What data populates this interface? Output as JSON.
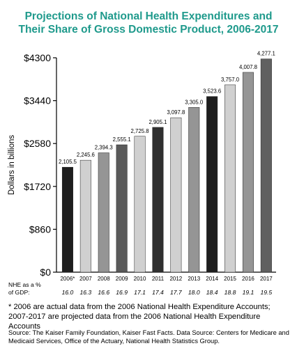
{
  "chart_data": {
    "type": "bar",
    "title": "Projections of National Health Expenditures and Their Share of Gross Domestic Product, 2006-2017",
    "title_lines": [
      "Projections of National Health Expenditures and",
      "Their Share of Gross Domestic Product, 2006-2017"
    ],
    "ylabel": "Dollars in billions",
    "xlabel": "",
    "categories": [
      "2006*",
      "2007",
      "2008",
      "2009",
      "2010",
      "2011",
      "2012",
      "2013",
      "2014",
      "2015",
      "2016",
      "2017"
    ],
    "values": [
      2105.5,
      2245.6,
      2394.3,
      2555.1,
      2725.8,
      2905.1,
      3097.8,
      3305.0,
      3523.6,
      3757.0,
      4007.8,
      4277.1
    ],
    "value_labels": [
      "2,105.5",
      "2,245.6",
      "2,394.3",
      "2,555.1",
      "2,725.8",
      "2,905.1",
      "3,097.8",
      "3,305.0",
      "3,523.6",
      "3,757.0",
      "4,007.8",
      "4,277.1"
    ],
    "bar_colors": [
      "#1e1e1e",
      "#d0d0d0",
      "#959595",
      "#5a5a5a",
      "#d0d0d0",
      "#303030",
      "#d0d0d0",
      "#959595",
      "#1e1e1e",
      "#d0d0d0",
      "#959595",
      "#606060"
    ],
    "ylim": [
      0,
      4300
    ],
    "yticks": [
      0,
      860,
      1720,
      2580,
      3440,
      4300
    ],
    "ytick_labels": [
      "$0",
      "$860",
      "$1720",
      "$2580",
      "$3440",
      "$4300"
    ],
    "gdp_label_lines": [
      "NHE as a %",
      "of GDP:"
    ],
    "gdp_share": [
      "16.0",
      "16.3",
      "16.6",
      "16.9",
      "17.1",
      "17.4",
      "17.7",
      "18.0",
      "18.4",
      "18.8",
      "19.1",
      "19.5"
    ],
    "grid": false,
    "legend": "none"
  },
  "footnote": "* 2006 are actual data from the 2006 National Health Expenditure Accounts; 2007-2017 are projected data from the 2006 National Health Expenditure Accounts",
  "source": "Source: The Kaiser Family Foundation, Kaiser Fast Facts. Data Source: Centers for Medicare and Medicaid Services, Office of the Actuary, National Health Statistics Group."
}
